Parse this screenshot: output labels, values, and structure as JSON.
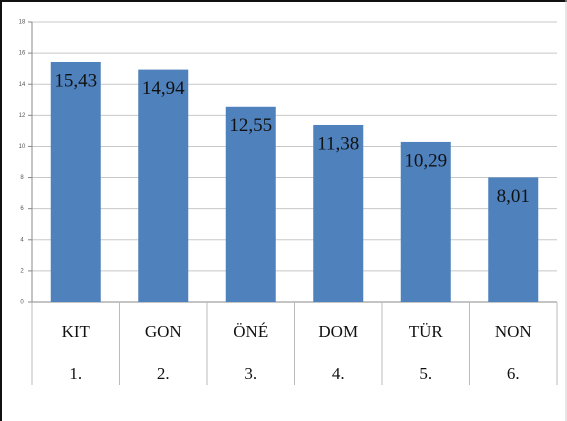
{
  "chart_data": {
    "type": "bar",
    "categories": [
      "KIT",
      "GON",
      "ÖNÉ",
      "DOM",
      "TÜR",
      "NON"
    ],
    "sub_categories": [
      "1.",
      "2.",
      "3.",
      "4.",
      "5.",
      "6."
    ],
    "values": [
      15.43,
      14.94,
      12.55,
      11.38,
      10.29,
      8.01
    ],
    "value_labels": [
      "15,43",
      "14,94",
      "12,55",
      "11,38",
      "10,29",
      "8,01"
    ],
    "color": "#4f81bd",
    "ylim": [
      0,
      18
    ],
    "yticks": [
      0,
      2,
      4,
      6,
      8,
      10,
      12,
      14,
      16,
      18
    ],
    "grid": true
  }
}
